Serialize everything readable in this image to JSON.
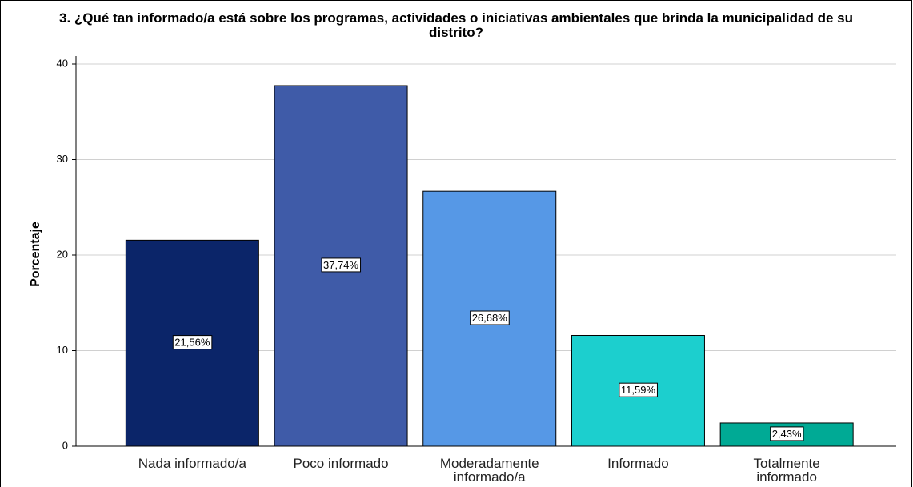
{
  "chart_data": {
    "type": "bar",
    "title": "3. ¿Qué tan informado/a está sobre los programas, actividades o iniciativas ambientales que brinda la municipalidad de su distrito?",
    "y_label": "Porcentaje",
    "categories": [
      "Nada informado/a",
      "Poco informado",
      "Moderadamente informado/a",
      "Informado",
      "Totalmente informado"
    ],
    "values": [
      21.56,
      37.74,
      26.68,
      11.59,
      2.43
    ],
    "value_labels": [
      "21,56%",
      "37,74%",
      "26,68%",
      "11,59%",
      "2,43%"
    ],
    "colors": [
      "#0b2569",
      "#3f5ba8",
      "#5698e6",
      "#1ccfce",
      "#00aa95"
    ],
    "ylim": [
      0,
      40
    ],
    "yticks": [
      0,
      10,
      20,
      30,
      40
    ],
    "grid": true
  }
}
